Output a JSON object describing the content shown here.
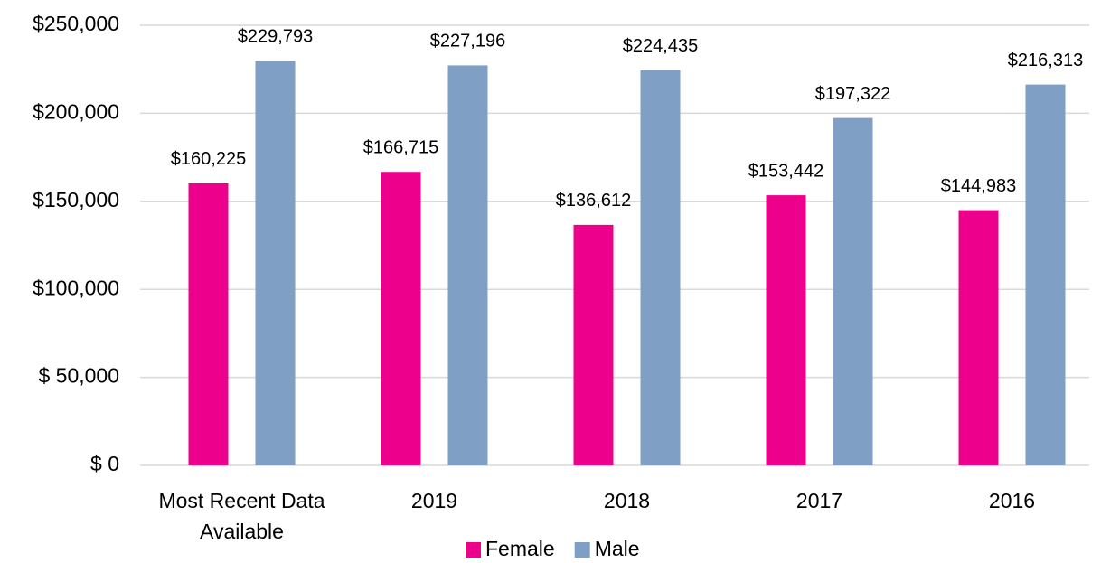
{
  "chart_data": {
    "type": "bar",
    "categories": [
      "Most Recent Data Available",
      "2019",
      "2018",
      "2017",
      "2016"
    ],
    "series": [
      {
        "name": "Female",
        "color": "#ec008c",
        "values": [
          160225,
          166715,
          136612,
          153442,
          144983
        ],
        "value_labels": [
          "$160,225",
          "$166,715",
          "$136,612",
          "$153,442",
          "$144,983"
        ]
      },
      {
        "name": "Male",
        "color": "#7f9fc4",
        "values": [
          229793,
          227196,
          224435,
          197322,
          216313
        ],
        "value_labels": [
          "$229,793",
          "$227,196",
          "$224,435",
          "$197,322",
          "$216,313"
        ]
      }
    ],
    "ylim": [
      0,
      250000
    ],
    "yticks": [
      {
        "value": 0,
        "label": "$ 0"
      },
      {
        "value": 50000,
        "label": "$ 50,000"
      },
      {
        "value": 100000,
        "label": "$100,000"
      },
      {
        "value": 150000,
        "label": "$150,000"
      },
      {
        "value": 200000,
        "label": "$200,000"
      },
      {
        "value": 250000,
        "label": "$250,000"
      }
    ],
    "grid": true,
    "legend": "bottom"
  }
}
